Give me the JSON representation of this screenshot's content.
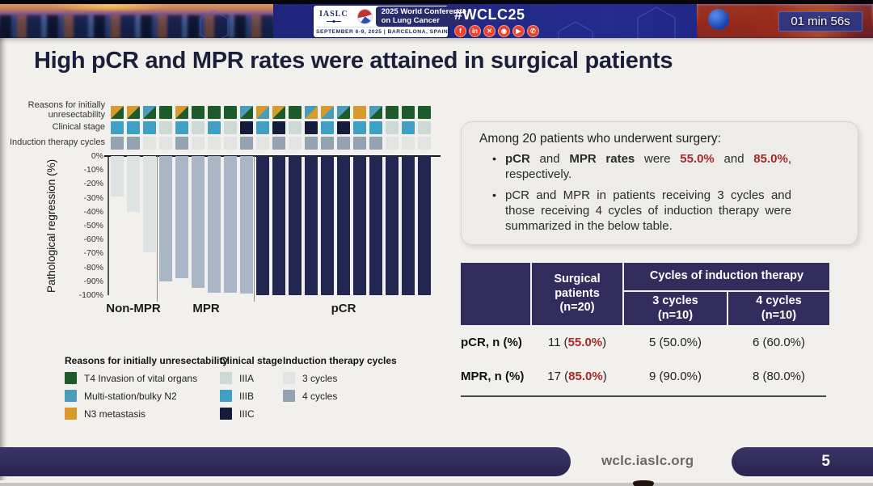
{
  "banner": {
    "logo": {
      "org": "IASLC",
      "line1": "2025 World Conference",
      "line2": "on Lung Cancer",
      "dates": "SEPTEMBER 6-9, 2025  |  BARCELONA, SPAIN"
    },
    "hashtag": "#WCLC25",
    "social": [
      "facebook",
      "linkedin",
      "x",
      "instagram",
      "youtube",
      "phone"
    ],
    "social_glyphs": {
      "facebook": "f",
      "linkedin": "in",
      "x": "✕",
      "instagram": "◉",
      "youtube": "▶",
      "phone": "✆"
    },
    "timer": "01 min 56s"
  },
  "slide": {
    "title": "High pCR and MPR rates were attained in surgical patients",
    "chart_data": {
      "type": "bar",
      "subtype": "waterfall",
      "ylabel": "Pathological regression (%)",
      "ylim": [
        -100,
        0
      ],
      "yticks": [
        "0%",
        "-10%",
        "-20%",
        "-30%",
        "-40%",
        "-50%",
        "-60%",
        "-70%",
        "-80%",
        "-90%",
        "-100%"
      ],
      "annotation_rows": [
        "Reasons for initially\nunresectability",
        "Clinical stage",
        "Induction therapy cycles"
      ],
      "groups": [
        {
          "label": "Non-MPR",
          "count": 3
        },
        {
          "label": "MPR",
          "count": 6
        },
        {
          "label": "pCR",
          "count": 11
        }
      ],
      "patients": [
        {
          "regression": -29,
          "group": "Non-MPR",
          "reasons": [
            "N3",
            "T4"
          ],
          "stage": "IIIB",
          "cycles": "4"
        },
        {
          "regression": -40,
          "group": "Non-MPR",
          "reasons": [
            "N3",
            "T4"
          ],
          "stage": "IIIB",
          "cycles": "4"
        },
        {
          "regression": -69,
          "group": "Non-MPR",
          "reasons": [
            "N2",
            "T4"
          ],
          "stage": "IIIB",
          "cycles": "3"
        },
        {
          "regression": -90,
          "group": "MPR",
          "reasons": [
            "T4"
          ],
          "stage": "IIIA",
          "cycles": "3"
        },
        {
          "regression": -88,
          "group": "MPR",
          "reasons": [
            "N3",
            "T4"
          ],
          "stage": "IIIB",
          "cycles": "4"
        },
        {
          "regression": -95,
          "group": "MPR",
          "reasons": [
            "T4"
          ],
          "stage": "IIIA",
          "cycles": "3"
        },
        {
          "regression": -98,
          "group": "MPR",
          "reasons": [
            "T4"
          ],
          "stage": "IIIB",
          "cycles": "3"
        },
        {
          "regression": -98,
          "group": "MPR",
          "reasons": [
            "T4"
          ],
          "stage": "IIIA",
          "cycles": "3"
        },
        {
          "regression": -99,
          "group": "MPR",
          "reasons": [
            "N2",
            "T4"
          ],
          "stage": "IIIC",
          "cycles": "4"
        },
        {
          "regression": -100,
          "group": "pCR",
          "reasons": [
            "N3",
            "N2"
          ],
          "stage": "IIIB",
          "cycles": "3"
        },
        {
          "regression": -100,
          "group": "pCR",
          "reasons": [
            "N3",
            "T4"
          ],
          "stage": "IIIC",
          "cycles": "4"
        },
        {
          "regression": -100,
          "group": "pCR",
          "reasons": [
            "T4"
          ],
          "stage": "IIIA",
          "cycles": "3"
        },
        {
          "regression": -100,
          "group": "pCR",
          "reasons": [
            "N2",
            "N3"
          ],
          "stage": "IIIC",
          "cycles": "4"
        },
        {
          "regression": -100,
          "group": "pCR",
          "reasons": [
            "N3",
            "N2"
          ],
          "stage": "IIIB",
          "cycles": "4"
        },
        {
          "regression": -100,
          "group": "pCR",
          "reasons": [
            "N2",
            "T4"
          ],
          "stage": "IIIC",
          "cycles": "4"
        },
        {
          "regression": -100,
          "group": "pCR",
          "reasons": [
            "N3"
          ],
          "stage": "IIIB",
          "cycles": "4"
        },
        {
          "regression": -100,
          "group": "pCR",
          "reasons": [
            "N2",
            "T4"
          ],
          "stage": "IIIB",
          "cycles": "4"
        },
        {
          "regression": -100,
          "group": "pCR",
          "reasons": [
            "T4"
          ],
          "stage": "IIIA",
          "cycles": "3"
        },
        {
          "regression": -100,
          "group": "pCR",
          "reasons": [
            "T4"
          ],
          "stage": "IIIB",
          "cycles": "3"
        },
        {
          "regression": -100,
          "group": "pCR",
          "reasons": [
            "T4"
          ],
          "stage": "IIIA",
          "cycles": "3"
        }
      ],
      "reason_colors": {
        "T4": "#1e5b2b",
        "N2": "#4a9cbb",
        "N3": "#d79a2b"
      },
      "stage_colors": {
        "IIIA": "#ccd9d4",
        "IIIB": "#3fa0c4",
        "IIIC": "#151b3a"
      },
      "cycle_colors": {
        "3": "#e2e4e3",
        "4": "#94a1b1"
      },
      "bar_colors": {
        "Non-MPR": "#dde3e2",
        "MPR": "#a8b6c6",
        "pCR": "#212750"
      },
      "legend": [
        {
          "title": "Reasons for initially unresectability",
          "items": [
            {
              "label": "T4 Invasion of vital organs",
              "color": "#1e5b2b"
            },
            {
              "label": "Multi-station/bulky N2",
              "color": "#4a9cbb"
            },
            {
              "label": "N3 metastasis",
              "color": "#d79a2b"
            }
          ]
        },
        {
          "title": "Clinical stage",
          "items": [
            {
              "label": "IIIA",
              "color": "#ccd9d4"
            },
            {
              "label": "IIIB",
              "color": "#3fa0c4"
            },
            {
              "label": "IIIC",
              "color": "#151b3a"
            }
          ]
        },
        {
          "title": "Induction therapy cycles",
          "items": [
            {
              "label": "3 cycles",
              "color": "#e2e4e3"
            },
            {
              "label": "4 cycles",
              "color": "#94a1b1"
            }
          ]
        }
      ]
    },
    "info_box": {
      "heading": "Among 20 patients who underwent surgery:",
      "bullet_marker": "•",
      "bullet1_parts": [
        {
          "t": "pCR",
          "s": "bold"
        },
        {
          "t": " and "
        },
        {
          "t": "MPR rates",
          "s": "bold"
        },
        {
          "t": " were "
        },
        {
          "t": "55.0%",
          "s": "red"
        },
        {
          "t": " and "
        },
        {
          "t": "85.0%",
          "s": "red"
        },
        {
          "t": ", respectively."
        }
      ],
      "bullet2": "pCR and MPR in patients receiving 3 cycles and those receiving 4 cycles of induction therapy were summarized in the below table."
    },
    "table": {
      "headers": {
        "corner": "",
        "surgical": "Surgical\npatients\n(n=20)",
        "cycles": "Cycles of induction therapy",
        "c3": "3 cycles\n(n=10)",
        "c4": "4 cycles\n(n=10)"
      },
      "rows": [
        {
          "label": "pCR, n (%)",
          "surg_pre": "11 (",
          "surg_red": "55.0%",
          "surg_post": ")",
          "c3": "5 (50.0%)",
          "c4": "6 (60.0%)"
        },
        {
          "label": "MPR, n (%)",
          "surg_pre": "17 (",
          "surg_red": "85.0%",
          "surg_post": ")",
          "c3": "9 (90.0%)",
          "c4": "8 (80.0%)"
        }
      ]
    },
    "footer": {
      "url": "wclc.iaslc.org",
      "page": "5"
    }
  },
  "colors": {
    "title_text": "#1b1f3a",
    "accent_red": "#a42a28",
    "table_header_bg": "#322d5c",
    "banner_blue": "#1d2178",
    "footer_pill": "#2f2a58",
    "slide_bg": "#f2f0ec"
  }
}
